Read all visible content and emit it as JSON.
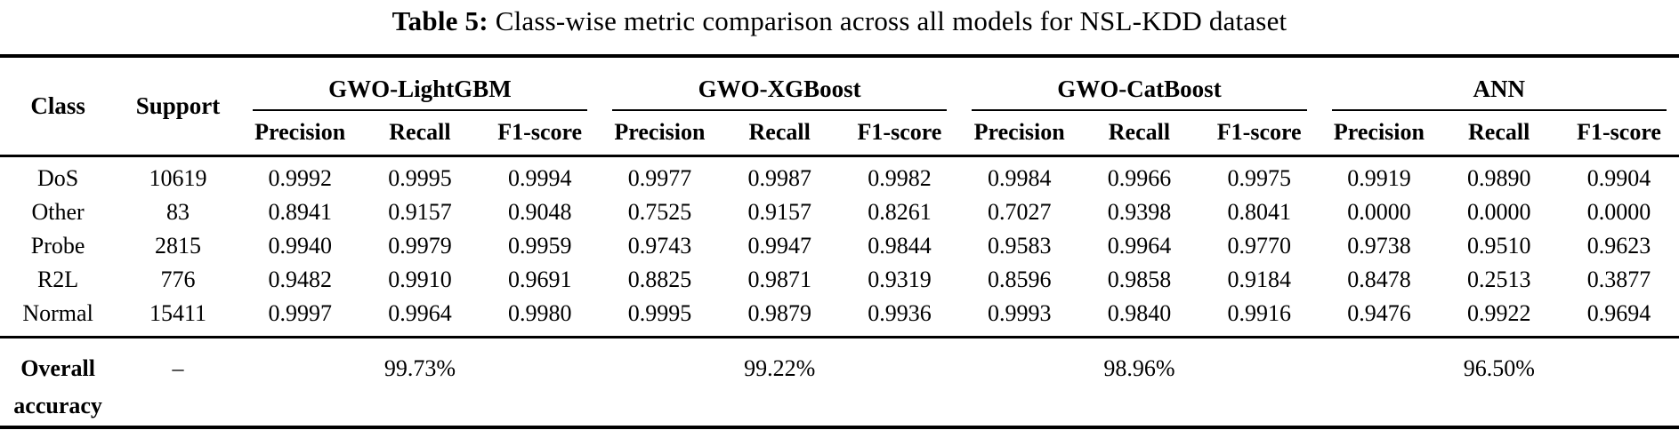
{
  "title": {
    "label": "Table 5:",
    "text": "Class-wise metric comparison across all models for NSL-KDD dataset"
  },
  "columns": {
    "class": "Class",
    "support": "Support",
    "metrics": [
      "Precision",
      "Recall",
      "F1-score"
    ]
  },
  "models": [
    "GWO-LightGBM",
    "GWO-XGBoost",
    "GWO-CatBoost",
    "ANN"
  ],
  "rows": [
    {
      "class": "DoS",
      "support": "10619",
      "values": [
        "0.9992",
        "0.9995",
        "0.9994",
        "0.9977",
        "0.9987",
        "0.9982",
        "0.9984",
        "0.9966",
        "0.9975",
        "0.9919",
        "0.9890",
        "0.9904"
      ]
    },
    {
      "class": "Other",
      "support": "83",
      "values": [
        "0.8941",
        "0.9157",
        "0.9048",
        "0.7525",
        "0.9157",
        "0.8261",
        "0.7027",
        "0.9398",
        "0.8041",
        "0.0000",
        "0.0000",
        "0.0000"
      ]
    },
    {
      "class": "Probe",
      "support": "2815",
      "values": [
        "0.9940",
        "0.9979",
        "0.9959",
        "0.9743",
        "0.9947",
        "0.9844",
        "0.9583",
        "0.9964",
        "0.9770",
        "0.9738",
        "0.9510",
        "0.9623"
      ]
    },
    {
      "class": "R2L",
      "support": "776",
      "values": [
        "0.9482",
        "0.9910",
        "0.9691",
        "0.8825",
        "0.9871",
        "0.9319",
        "0.8596",
        "0.9858",
        "0.9184",
        "0.8478",
        "0.2513",
        "0.3877"
      ]
    },
    {
      "class": "Normal",
      "support": "15411",
      "values": [
        "0.9997",
        "0.9964",
        "0.9980",
        "0.9995",
        "0.9879",
        "0.9936",
        "0.9993",
        "0.9840",
        "0.9916",
        "0.9476",
        "0.9922",
        "0.9694"
      ]
    }
  ],
  "overall": {
    "label": "Overall accuracy",
    "support": "–",
    "values": [
      "99.73%",
      "99.22%",
      "98.96%",
      "96.50%"
    ]
  },
  "colors": {
    "text": "#000000",
    "background": "#ffffff",
    "rule": "#000000"
  }
}
